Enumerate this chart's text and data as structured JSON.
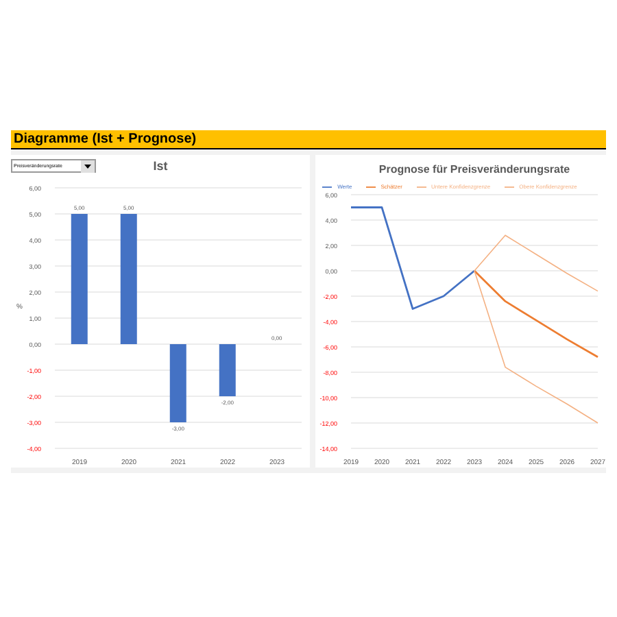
{
  "chart_data": [
    {
      "type": "bar",
      "title": "Ist",
      "ylabel": "%",
      "annotations": [
        "Diagramme (Ist + Prognose)",
        "Preisveränderungsrate"
      ],
      "categories": [
        "2019",
        "2020",
        "2021",
        "2022",
        "2023"
      ],
      "values": [
        5,
        5,
        -3,
        -2,
        0
      ],
      "value_labels": [
        "5,00",
        "5,00",
        "-3,00",
        "-2,00",
        "0,00"
      ],
      "color": "#4472c4",
      "ylim": [
        -4,
        6
      ],
      "yticks": [
        {
          "value": -4,
          "label": "-4,00"
        },
        {
          "value": -3,
          "label": "-3,00"
        },
        {
          "value": -2,
          "label": "-2,00"
        },
        {
          "value": -1,
          "label": "-1,00"
        },
        {
          "value": 0,
          "label": "0,00"
        },
        {
          "value": 1,
          "label": "1,00"
        },
        {
          "value": 2,
          "label": "2,00"
        },
        {
          "value": 3,
          "label": "3,00"
        },
        {
          "value": 4,
          "label": "4,00"
        },
        {
          "value": 5,
          "label": "5,00"
        },
        {
          "value": 6,
          "label": "6,00"
        }
      ],
      "grid": "y"
    },
    {
      "type": "line",
      "title": "Prognose für Preisveränderungsrate",
      "categories": [
        "2019",
        "2020",
        "2021",
        "2022",
        "2023",
        "2024",
        "2025",
        "2026",
        "2027"
      ],
      "series": [
        {
          "name": "Werte",
          "color": "#4472c4",
          "values": [
            5,
            5,
            -3,
            -2,
            0,
            null,
            null,
            null,
            null
          ]
        },
        {
          "name": "Schätzer",
          "color": "#ed7d31",
          "values": [
            null,
            null,
            null,
            null,
            0,
            -2.4,
            -3.9,
            -5.4,
            -6.8
          ]
        },
        {
          "name": "Untere Konfidenzgrenze",
          "color": "#f4b183",
          "values": [
            null,
            null,
            null,
            null,
            0,
            -7.6,
            -9.1,
            -10.5,
            -12
          ]
        },
        {
          "name": "Obere Konfidenzgrenze",
          "color": "#f4b183",
          "values": [
            null,
            null,
            null,
            null,
            0,
            2.8,
            1.3,
            -0.2,
            -1.6
          ]
        }
      ],
      "ylim": [
        -14,
        6
      ],
      "yticks": [
        {
          "value": -14,
          "label": "-14,00"
        },
        {
          "value": -12,
          "label": "-12,00"
        },
        {
          "value": -10,
          "label": "-10,00"
        },
        {
          "value": -8,
          "label": "-8,00"
        },
        {
          "value": -6,
          "label": "-6,00"
        },
        {
          "value": -4,
          "label": "-4,00"
        },
        {
          "value": -2,
          "label": "-2,00"
        },
        {
          "value": 0,
          "label": "0,00"
        },
        {
          "value": 2,
          "label": "2,00"
        },
        {
          "value": 4,
          "label": "4,00"
        },
        {
          "value": 6,
          "label": "6,00"
        }
      ],
      "grid": "y",
      "legend": "top"
    }
  ]
}
